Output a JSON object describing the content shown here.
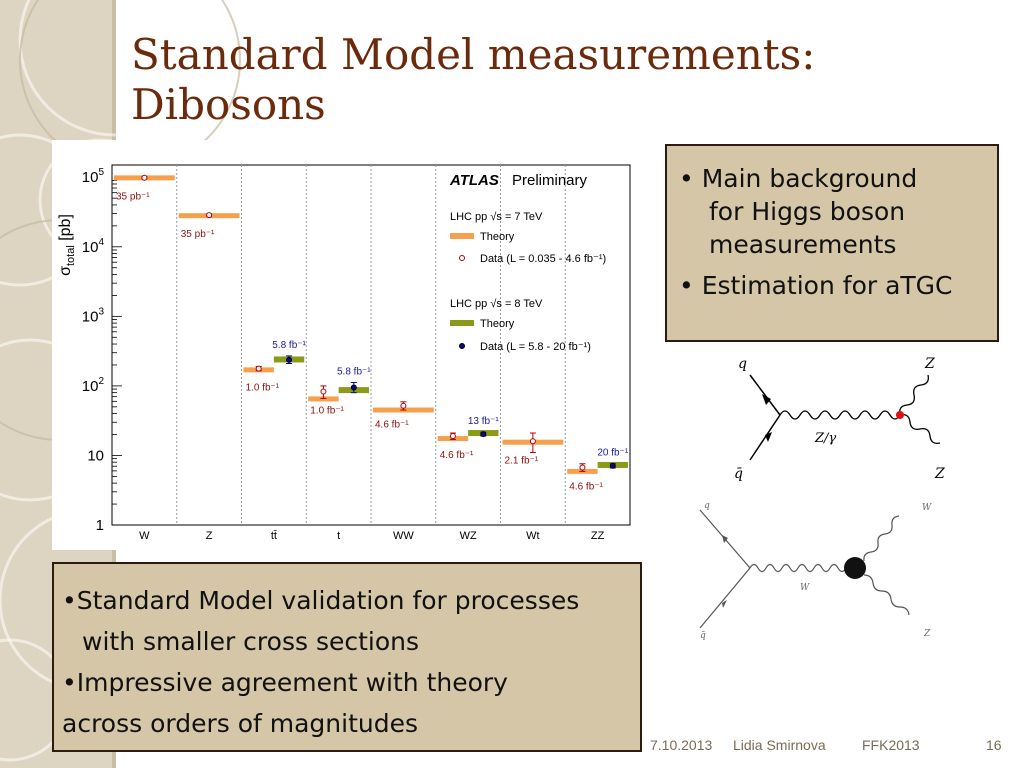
{
  "slide": {
    "title": "Standard Model measurements: Dibosons",
    "box1": {
      "line1": "• Main background",
      "line2": "for Higgs boson",
      "line3": "measurements",
      "line4": "• Estimation for aTGC"
    },
    "box2": {
      "line1": "•Standard Model validation for processes",
      "line2": "with  smaller cross sections",
      "line3": "•Impressive agreement with theory",
      "line4": "across orders of magnitudes"
    },
    "footer": {
      "date": "7.10.2013",
      "author": "Lidia Smirnova",
      "event": "FFK2013",
      "page": "16"
    }
  },
  "diagrams": {
    "zz": {
      "q": "q",
      "qbar": "q̄",
      "z_top": "Z",
      "z_bottom": "Z",
      "propagator": "Z/γ"
    },
    "wz": {
      "q": "q",
      "qbar": "q̄",
      "w_prop": "W",
      "w_out": "W",
      "z_out": "Z"
    }
  },
  "colors": {
    "theory7": "#f6a04d",
    "theory8": "#8c9a1a",
    "data7": "#b00000",
    "data8": "#0a0a8a",
    "label7": "#8b1010",
    "label8": "#1a1aa0"
  },
  "chart_data": {
    "type": "scatter",
    "title": "ATLAS Preliminary",
    "ylabel_main": "σ",
    "ylabel_sub": "total",
    "ylabel_unit": "[pb]",
    "yscale": "log",
    "ylim": [
      1,
      150000
    ],
    "yticks": [
      {
        "base": "10",
        "exp": "5",
        "value": 100000
      },
      {
        "base": "10",
        "exp": "4",
        "value": 10000
      },
      {
        "base": "10",
        "exp": "3",
        "value": 1000
      },
      {
        "base": "10",
        "exp": "2",
        "value": 100
      },
      {
        "base": "10",
        "exp": "",
        "value": 10
      },
      {
        "base": "1",
        "exp": "",
        "value": 1
      }
    ],
    "categories": [
      "W",
      "Z",
      "tt̄",
      "t",
      "WW",
      "WZ",
      "Wt",
      "ZZ"
    ],
    "legend": {
      "group7": "LHC pp  √s = 7 TeV",
      "theory7": "Theory",
      "data7": "Data (L = 0.035 - 4.6 fb⁻¹)",
      "group8": "LHC pp  √s = 8 TeV",
      "theory8": "Theory",
      "data8": "Data (L = 5.8 - 20 fb⁻¹)"
    },
    "series": [
      {
        "name": "Theory",
        "energy": "7 TeV",
        "values": [
          {
            "c": 0,
            "y": 98000
          },
          {
            "c": 1,
            "y": 28000
          },
          {
            "c": 2,
            "y": 170
          },
          {
            "c": 3,
            "y": 65
          },
          {
            "c": 4,
            "y": 45
          },
          {
            "c": 5,
            "y": 17.5
          },
          {
            "c": 6,
            "y": 15.5
          },
          {
            "c": 7,
            "y": 5.9
          }
        ]
      },
      {
        "name": "Data (L = 0.035 - 4.6 fb⁻¹)",
        "energy": "7 TeV",
        "values": [
          {
            "c": 0,
            "y": 98500,
            "lo": 95000,
            "hi": 102000,
            "label": "35 pb⁻¹"
          },
          {
            "c": 1,
            "y": 28500,
            "lo": 27500,
            "hi": 29500,
            "label": "35 pb⁻¹"
          },
          {
            "c": 2,
            "y": 177,
            "lo": 165,
            "hi": 190,
            "label": "1.0 fb⁻¹"
          },
          {
            "c": 3,
            "y": 83,
            "lo": 66,
            "hi": 100,
            "label": "1.0 fb⁻¹"
          },
          {
            "c": 4,
            "y": 51.9,
            "lo": 45,
            "hi": 59,
            "label": "4.6 fb⁻¹"
          },
          {
            "c": 5,
            "y": 19,
            "lo": 17,
            "hi": 21,
            "label": "4.6 fb⁻¹"
          },
          {
            "c": 6,
            "y": 16,
            "lo": 11,
            "hi": 21,
            "label": "2.1 fb⁻¹"
          },
          {
            "c": 7,
            "y": 6.7,
            "lo": 5.9,
            "hi": 7.6,
            "label": "4.6 fb⁻¹"
          }
        ]
      },
      {
        "name": "Theory",
        "energy": "8 TeV",
        "values": [
          {
            "c": 2,
            "y": 240
          },
          {
            "c": 3,
            "y": 87
          },
          {
            "c": 5,
            "y": 21
          },
          {
            "c": 7,
            "y": 7.3
          }
        ]
      },
      {
        "name": "Data (L = 5.8 - 20 fb⁻¹)",
        "energy": "8 TeV",
        "values": [
          {
            "c": 2,
            "y": 237,
            "lo": 210,
            "hi": 270,
            "label": "5.8 fb⁻¹"
          },
          {
            "c": 3,
            "y": 95,
            "lo": 80,
            "hi": 112,
            "label": "5.8 fb⁻¹"
          },
          {
            "c": 5,
            "y": 20.3,
            "lo": 19,
            "hi": 21.6,
            "label": "13 fb⁻¹"
          },
          {
            "c": 7,
            "y": 7.1,
            "lo": 6.6,
            "hi": 7.6,
            "label": "20 fb⁻¹"
          }
        ]
      }
    ]
  }
}
